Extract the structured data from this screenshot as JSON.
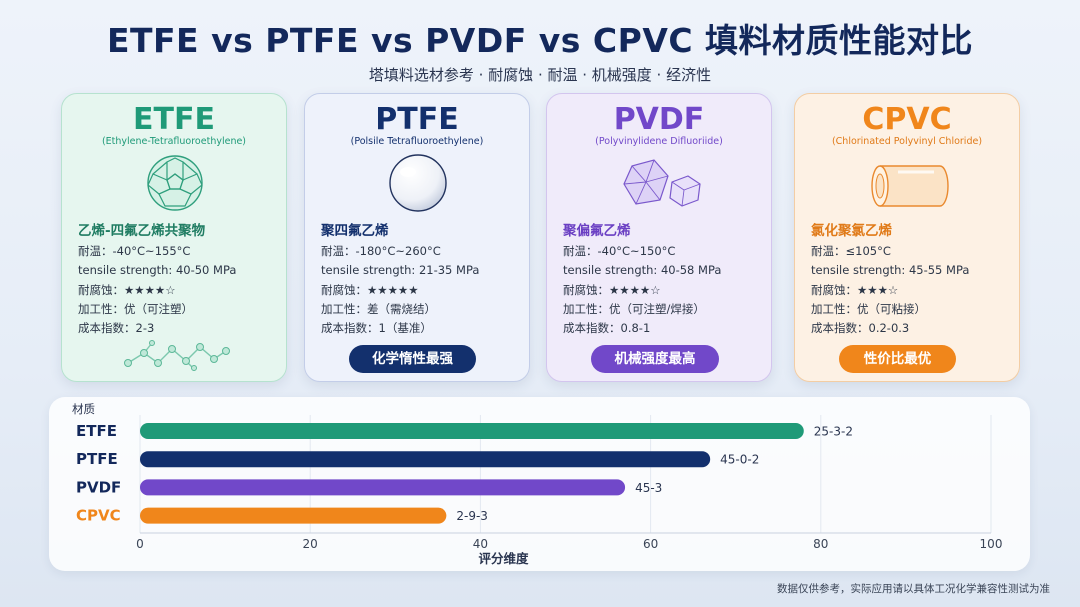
{
  "title": "ETFE vs PTFE vs PVDF vs CPVC 填料材质性能对比",
  "subtitle": "塔填料选材参考 · 耐腐蚀 · 耐温 · 机械强度 · 经济性",
  "cards": [
    {
      "name": "ETFE",
      "full": "(Ethylene-Tetrafluoroethylene)",
      "cn": "乙烯-四氟乙烯共聚物",
      "temp": "耐温：-40°C~155°C",
      "tensile": "tensile strength: 40-50 MPa",
      "corrosion": "耐腐蚀：★★★★☆",
      "process": "加工性：优（可注塑）",
      "cost": "成本指数：2-3",
      "badge": "",
      "color": "#1f9a78",
      "icon": "soccer-ball-molecule-icon"
    },
    {
      "name": "PTFE",
      "full": "(Polsile Tetrafluoroethylene)",
      "cn": "聚四氟乙烯",
      "temp": "耐温：-180°C~260°C",
      "tensile": "tensile strength: 21-35 MPa",
      "corrosion": "耐腐蚀：★★★★★",
      "process": "加工性：差（需烧结）",
      "cost": "成本指数：1（基准）",
      "badge": "化学惰性最强",
      "color": "#13306d",
      "icon": "white-sphere-icon"
    },
    {
      "name": "PVDF",
      "full": "(Polyvinylidene Difluoriide)",
      "cn": "聚偏氟乙烯",
      "temp": "耐温：-40°C~150°C",
      "tensile": "tensile strength: 40-58 MPa",
      "corrosion": "耐腐蚀：★★★★☆",
      "process": "加工性：优（可注塑/焊接）",
      "cost": "成本指数：0.8-1",
      "badge": "机械强度最高",
      "color": "#7148c9",
      "icon": "crystal-cube-icon"
    },
    {
      "name": "CPVC",
      "full": "(Chlorinated Polyvinyl Chloride)",
      "cn": "氯化聚氯乙烯",
      "temp": "耐温：≤105°C",
      "tensile": "tensile strength: 45-55 MPa",
      "corrosion": "耐腐蚀：★★★☆",
      "process": "加工性：优（可粘接）",
      "cost": "成本指数：0.2-0.3",
      "badge": "性价比最优",
      "color": "#f0861b",
      "icon": "pipe-segment-icon"
    }
  ],
  "chart_data": {
    "type": "bar",
    "orientation": "horizontal",
    "ylabel": "材质",
    "xlabel": "评分维度",
    "categories": [
      "ETFE",
      "PTFE",
      "PVDF",
      "CPVC"
    ],
    "values": [
      78,
      67,
      57,
      36
    ],
    "bar_labels": [
      "25-3-2",
      "45-0-2",
      "45-3",
      "2-9-3"
    ],
    "colors": [
      "#1f9a78",
      "#13306d",
      "#7148c9",
      "#f0861b"
    ],
    "category_label_colors": [
      "#13285b",
      "#13285b",
      "#13285b",
      "#f0861b"
    ],
    "xlim": [
      0,
      100
    ],
    "xticks": [
      0,
      20,
      40,
      60,
      80,
      100
    ],
    "grid": true
  },
  "footnote": "数据仅供参考，实际应用请以具体工况化学兼容性测试为准"
}
